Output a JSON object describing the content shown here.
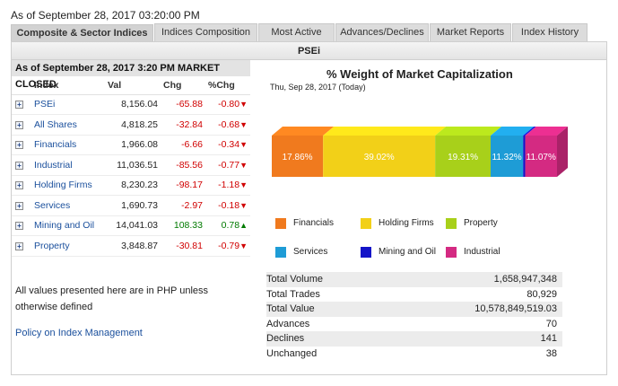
{
  "header": {
    "as_of": "As of September 28, 2017 03:20:00 PM"
  },
  "tabs": [
    {
      "label": "Composite & Sector Indices"
    },
    {
      "label": "Indices Composition"
    },
    {
      "label": "Most Active"
    },
    {
      "label": "Advances/Declines"
    },
    {
      "label": "Market Reports"
    },
    {
      "label": "Index History"
    }
  ],
  "panel": {
    "title": "PSEi"
  },
  "indices": {
    "header": "As of September 28, 2017 3:20 PM MARKET CLOSED",
    "columns": [
      "Index",
      "Val",
      "Chg",
      "%Chg"
    ],
    "rows": [
      {
        "name": "PSEi",
        "val": "8,156.04",
        "chg": "-65.88",
        "pct": "-0.80",
        "dir": "down"
      },
      {
        "name": "All Shares",
        "val": "4,818.25",
        "chg": "-32.84",
        "pct": "-0.68",
        "dir": "down"
      },
      {
        "name": "Financials",
        "val": "1,966.08",
        "chg": "-6.66",
        "pct": "-0.34",
        "dir": "down"
      },
      {
        "name": "Industrial",
        "val": "11,036.51",
        "chg": "-85.56",
        "pct": "-0.77",
        "dir": "down"
      },
      {
        "name": "Holding Firms",
        "val": "8,230.23",
        "chg": "-98.17",
        "pct": "-1.18",
        "dir": "down"
      },
      {
        "name": "Services",
        "val": "1,690.73",
        "chg": "-2.97",
        "pct": "-0.18",
        "dir": "down"
      },
      {
        "name": "Mining and Oil",
        "val": "14,041.03",
        "chg": "108.33",
        "pct": "0.78",
        "dir": "up"
      },
      {
        "name": "Property",
        "val": "3,848.87",
        "chg": "-30.81",
        "pct": "-0.79",
        "dir": "down"
      }
    ],
    "note": "All values presented here are in PHP unless otherwise defined",
    "policy_link": "Policy on Index Management"
  },
  "chart_data": {
    "type": "bar",
    "title": "% Weight of Market Capitalization",
    "subtitle": "Thu, Sep 28, 2017 (Today)",
    "stacked": true,
    "series": [
      {
        "name": "Financials",
        "value": 17.86,
        "label": "17.86%",
        "color": "#f07a1e"
      },
      {
        "name": "Holding Firms",
        "value": 39.02,
        "label": "39.02%",
        "color": "#f2d018"
      },
      {
        "name": "Property",
        "value": 19.31,
        "label": "19.31%",
        "color": "#a8d01a"
      },
      {
        "name": "Services",
        "value": 11.32,
        "label": "11.32%",
        "color": "#1e9cd6"
      },
      {
        "name": "Mining and Oil",
        "value": 0.72,
        "label": "",
        "color": "#1414c8"
      },
      {
        "name": "Industrial",
        "value": 11.07,
        "label": "11.07%",
        "color": "#d42a82"
      }
    ],
    "legend_position": "bottom"
  },
  "stats": [
    {
      "label": "Total Volume",
      "value": "1,658,947,348"
    },
    {
      "label": "Total Trades",
      "value": "80,929"
    },
    {
      "label": "Total Value",
      "value": "10,578,849,519.03"
    },
    {
      "label": "Advances",
      "value": "70"
    },
    {
      "label": "Declines",
      "value": "141"
    },
    {
      "label": "Unchanged",
      "value": "38"
    }
  ],
  "icons": {
    "expand": "plus-box-icon",
    "down": "triangle-down-icon",
    "up": "triangle-up-icon"
  }
}
